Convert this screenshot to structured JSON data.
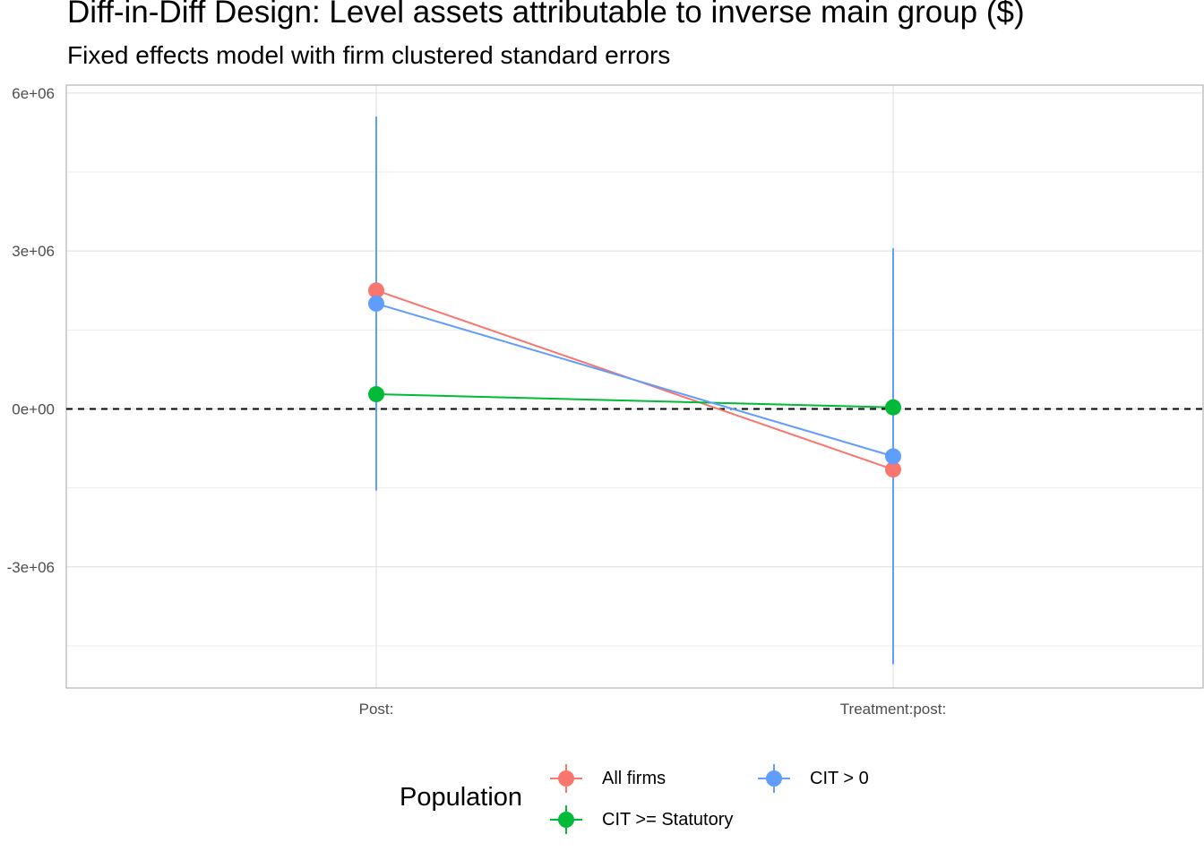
{
  "chart_data": {
    "type": "scatter",
    "title": "Diff-in-Diff Design: Level assets attributable to inverse main group  ($)",
    "subtitle": "Fixed effects model with firm clustered standard errors",
    "categories": [
      "Post:",
      "Treatment:post:"
    ],
    "ylim": [
      -5300000,
      6150000
    ],
    "yticks": [
      6000000,
      3000000,
      0,
      -3000000
    ],
    "ytick_labels": [
      "6e+06",
      "3e+06",
      "0e+00",
      "-3e+06"
    ],
    "reference_line": 0,
    "grid": true,
    "legend": {
      "title": "Population",
      "position": "bottom"
    },
    "series": [
      {
        "name": "All firms",
        "color": "#F8766D",
        "values": [
          2250000,
          -1150000
        ]
      },
      {
        "name": "CIT >= Statutory",
        "color": "#00BA38",
        "values": [
          280000,
          30000
        ]
      },
      {
        "name": "CIT > 0",
        "color": "#619CFF",
        "values": [
          2000000,
          -900000
        ],
        "error_bars": [
          [
            -1550000,
            5550000
          ],
          [
            -4850000,
            3050000
          ]
        ]
      }
    ]
  }
}
